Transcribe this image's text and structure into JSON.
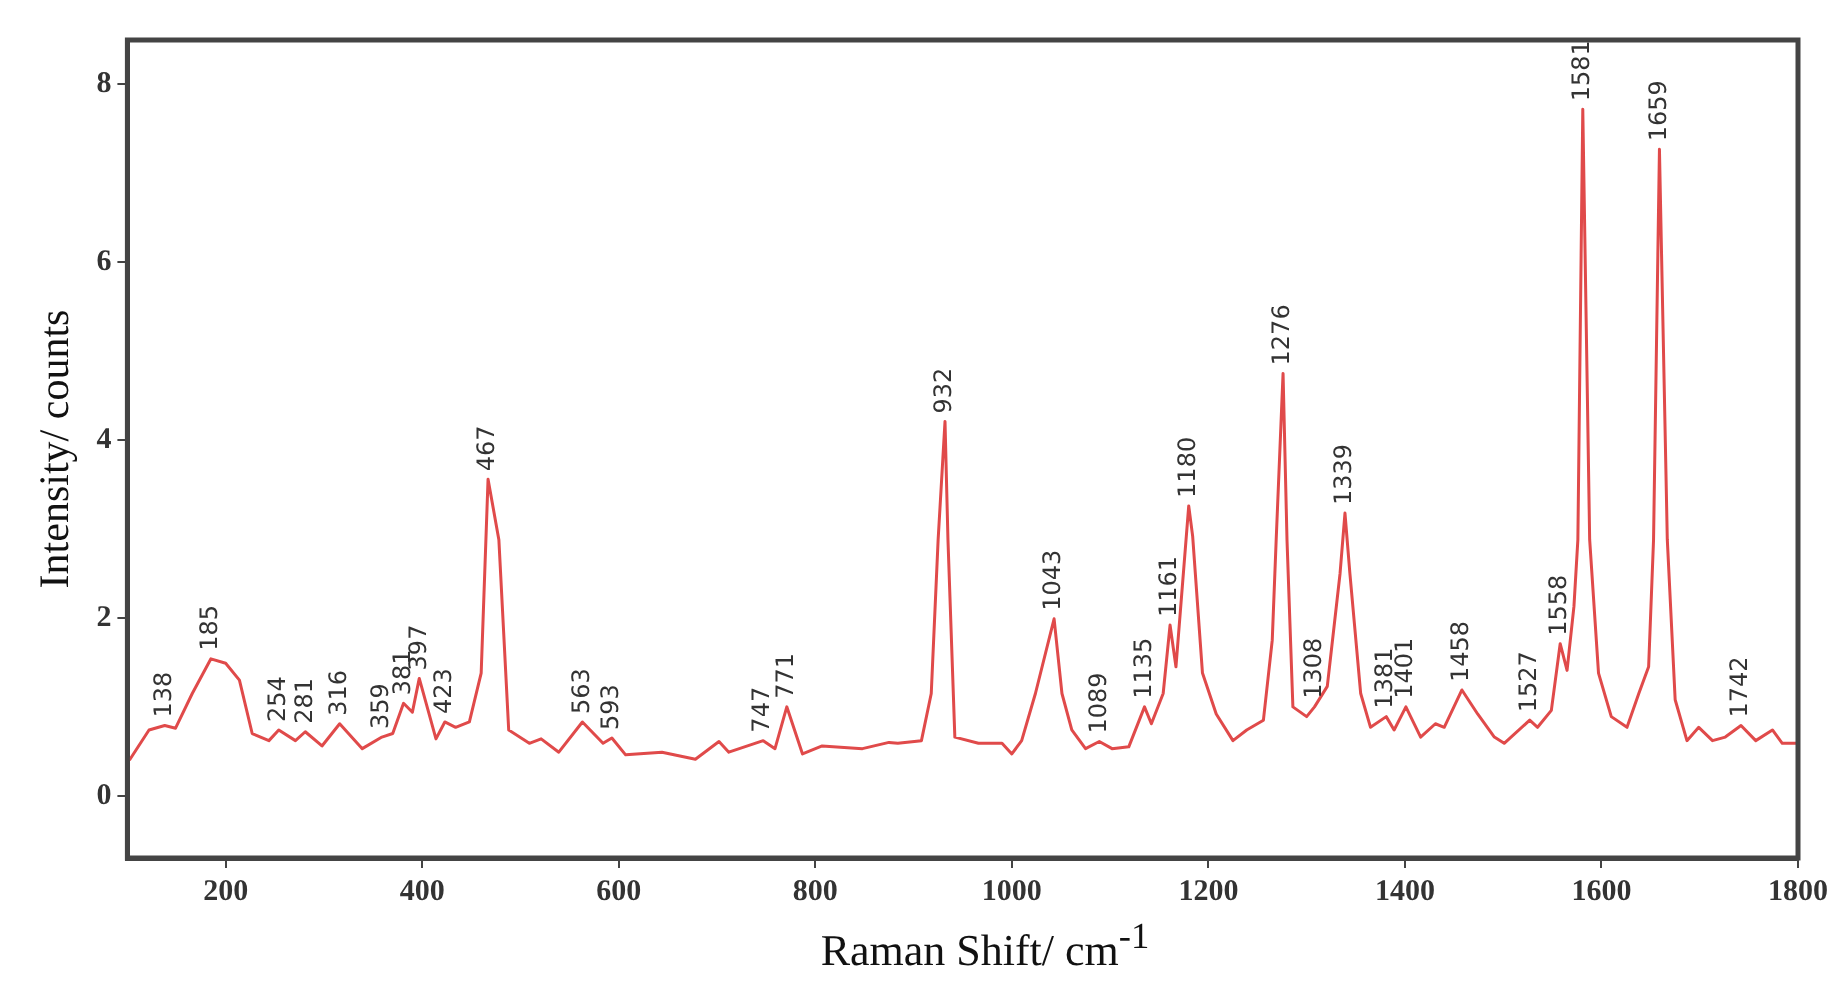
{
  "chart_data": {
    "type": "line",
    "xlabel": "Raman Shift/ cm$^{-1}$",
    "ylabel": "Intensity/ counts",
    "xlim": [
      100,
      1800
    ],
    "xticks": [
      200,
      400,
      600,
      800,
      1000,
      1200,
      1400,
      1600,
      1800
    ],
    "ylim": [
      -0.7,
      8.5
    ],
    "yticks": [
      0,
      2,
      4,
      6,
      8
    ],
    "legend": false,
    "marker": "none",
    "line_style": "solid",
    "series": [
      {
        "color": "#e04a4a",
        "x": [
          102,
          122,
          138,
          149,
          166,
          185,
          200,
          214,
          227,
          244,
          254,
          271,
          281,
          298,
          316,
          339,
          359,
          370,
          381,
          390,
          397,
          414,
          423,
          434,
          448,
          460,
          467,
          478,
          488,
          509,
          521,
          539,
          563,
          584,
          593,
          607,
          644,
          678,
          702,
          712,
          747,
          759,
          771,
          787,
          807,
          848,
          875,
          884,
          908,
          918,
          925,
          932,
          935,
          942,
          966,
          990,
          1000,
          1010,
          1024,
          1043,
          1051,
          1061,
          1075,
          1089,
          1102,
          1119,
          1135,
          1142,
          1154,
          1161,
          1167,
          1180,
          1184,
          1194,
          1208,
          1225,
          1239,
          1256,
          1265,
          1269,
          1276,
          1280,
          1286,
          1300,
          1308,
          1321,
          1334,
          1339,
          1344,
          1355,
          1365,
          1381,
          1389,
          1401,
          1416,
          1431,
          1440,
          1458,
          1474,
          1491,
          1501,
          1527,
          1535,
          1549,
          1558,
          1565,
          1572,
          1576,
          1581,
          1588,
          1597,
          1610,
          1626,
          1638,
          1648,
          1653,
          1659,
          1667,
          1675,
          1687,
          1699,
          1713,
          1726,
          1742,
          1757,
          1774,
          1784,
          1800
        ],
        "values": [
          0.4,
          0.74,
          0.79,
          0.76,
          1.15,
          1.54,
          1.49,
          1.3,
          0.7,
          0.62,
          0.74,
          0.62,
          0.72,
          0.56,
          0.81,
          0.53,
          0.66,
          0.7,
          1.04,
          0.94,
          1.32,
          0.64,
          0.83,
          0.77,
          0.83,
          1.38,
          3.56,
          2.88,
          0.74,
          0.59,
          0.64,
          0.49,
          0.83,
          0.59,
          0.65,
          0.46,
          0.49,
          0.41,
          0.61,
          0.49,
          0.62,
          0.53,
          1.0,
          0.47,
          0.56,
          0.53,
          0.6,
          0.59,
          0.62,
          1.15,
          2.88,
          4.21,
          2.88,
          0.66,
          0.59,
          0.59,
          0.47,
          0.62,
          1.15,
          1.99,
          1.15,
          0.74,
          0.53,
          0.61,
          0.53,
          0.55,
          1.0,
          0.81,
          1.15,
          1.92,
          1.45,
          3.26,
          2.92,
          1.38,
          0.92,
          0.62,
          0.74,
          0.85,
          1.75,
          2.88,
          4.75,
          2.88,
          1.0,
          0.89,
          1.0,
          1.23,
          2.5,
          3.18,
          2.5,
          1.15,
          0.77,
          0.89,
          0.74,
          1.0,
          0.66,
          0.81,
          0.77,
          1.19,
          0.92,
          0.66,
          0.59,
          0.85,
          0.77,
          0.96,
          1.71,
          1.41,
          2.13,
          2.88,
          7.72,
          2.88,
          1.38,
          0.89,
          0.77,
          1.15,
          1.45,
          2.88,
          7.27,
          2.88,
          1.08,
          0.62,
          0.77,
          0.62,
          0.66,
          0.79,
          0.62,
          0.74,
          0.59,
          0.59
        ]
      }
    ],
    "annotations": [
      {
        "text": "138",
        "x": 138,
        "y": 0.79
      },
      {
        "text": "185",
        "x": 185,
        "y": 1.54
      },
      {
        "text": "254",
        "x": 254,
        "y": 0.74
      },
      {
        "text": "281",
        "x": 281,
        "y": 0.72
      },
      {
        "text": "316",
        "x": 316,
        "y": 0.81
      },
      {
        "text": "359",
        "x": 359,
        "y": 0.66
      },
      {
        "text": "381",
        "x": 381,
        "y": 1.04
      },
      {
        "text": "397",
        "x": 397,
        "y": 1.32
      },
      {
        "text": "423",
        "x": 423,
        "y": 0.83
      },
      {
        "text": "467",
        "x": 467,
        "y": 3.56
      },
      {
        "text": "563",
        "x": 563,
        "y": 0.83
      },
      {
        "text": "593",
        "x": 593,
        "y": 0.65
      },
      {
        "text": "747",
        "x": 747,
        "y": 0.62
      },
      {
        "text": "771",
        "x": 771,
        "y": 1.0
      },
      {
        "text": "932",
        "x": 932,
        "y": 4.21
      },
      {
        "text": "1043",
        "x": 1043,
        "y": 1.99
      },
      {
        "text": "1089",
        "x": 1089,
        "y": 0.61
      },
      {
        "text": "1135",
        "x": 1135,
        "y": 1.0
      },
      {
        "text": "1161",
        "x": 1161,
        "y": 1.92
      },
      {
        "text": "1180",
        "x": 1180,
        "y": 3.26
      },
      {
        "text": "1276",
        "x": 1276,
        "y": 4.75
      },
      {
        "text": "1308",
        "x": 1308,
        "y": 1.0
      },
      {
        "text": "1339",
        "x": 1339,
        "y": 3.18
      },
      {
        "text": "1381",
        "x": 1381,
        "y": 0.89
      },
      {
        "text": "1401",
        "x": 1401,
        "y": 1.0
      },
      {
        "text": "1458",
        "x": 1458,
        "y": 1.19
      },
      {
        "text": "1527",
        "x": 1527,
        "y": 0.85
      },
      {
        "text": "1558",
        "x": 1558,
        "y": 1.71
      },
      {
        "text": "1581",
        "x": 1581,
        "y": 7.72
      },
      {
        "text": "1659",
        "x": 1659,
        "y": 7.27
      },
      {
        "text": "1742",
        "x": 1742,
        "y": 0.79
      }
    ]
  }
}
